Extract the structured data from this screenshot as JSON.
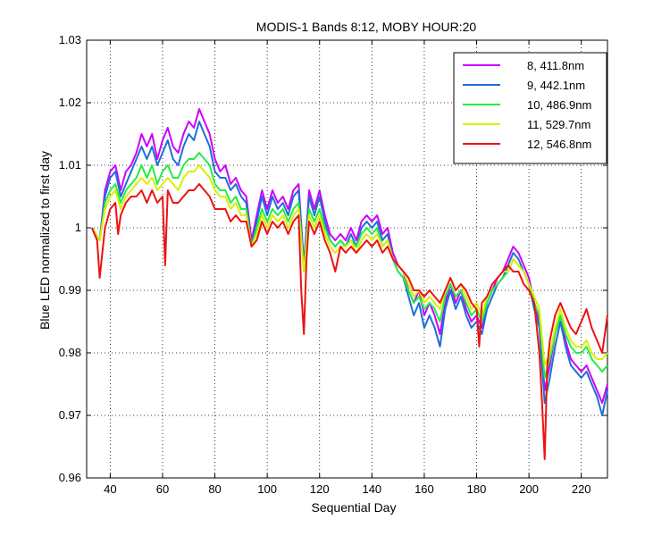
{
  "chart_data": {
    "type": "line",
    "title": "MODIS-1 Bands 8:12, MOBY HOUR:20",
    "xlabel": "Sequential Day",
    "ylabel": "Blue LED normalized to first day",
    "xlim": [
      31,
      230
    ],
    "ylim": [
      0.96,
      1.03
    ],
    "x_ticks": [
      40,
      60,
      80,
      100,
      120,
      140,
      160,
      180,
      200,
      220
    ],
    "x_tick_labels": [
      "40",
      "60",
      "80",
      "100",
      "120",
      "140",
      "160",
      "180",
      "200",
      "220"
    ],
    "y_ticks": [
      0.96,
      0.97,
      0.98,
      0.99,
      1.0,
      1.01,
      1.02,
      1.03
    ],
    "y_tick_labels": [
      "0.96",
      "0.97",
      "0.98",
      "0.99",
      "1",
      "1.01",
      "1.02",
      "1.03"
    ],
    "grid": "dotted",
    "legend_position": "top-right",
    "series": [
      {
        "name": "8, 411.8nm",
        "color": "#cc00ff",
        "x": [
          33,
          36,
          38,
          40,
          42,
          44,
          46,
          48,
          50,
          52,
          54,
          56,
          58,
          60,
          62,
          64,
          66,
          68,
          70,
          72,
          74,
          76,
          78,
          80,
          82,
          84,
          86,
          88,
          90,
          92,
          94,
          96,
          98,
          100,
          102,
          104,
          106,
          108,
          110,
          112,
          114,
          116,
          118,
          120,
          122,
          124,
          126,
          128,
          130,
          132,
          134,
          136,
          138,
          140,
          142,
          144,
          146,
          148,
          150,
          152,
          154,
          156,
          158,
          160,
          162,
          164,
          166,
          168,
          170,
          172,
          174,
          176,
          178,
          180,
          182,
          184,
          186,
          188,
          190,
          192,
          194,
          196,
          198,
          200,
          202,
          204,
          206,
          208,
          210,
          212,
          214,
          216,
          218,
          220,
          222,
          224,
          226,
          228,
          230
        ],
        "y": [
          1.0,
          0.998,
          1.006,
          1.009,
          1.01,
          1.006,
          1.009,
          1.01,
          1.012,
          1.015,
          1.013,
          1.015,
          1.011,
          1.014,
          1.016,
          1.013,
          1.012,
          1.015,
          1.017,
          1.016,
          1.019,
          1.017,
          1.015,
          1.011,
          1.009,
          1.01,
          1.007,
          1.008,
          1.006,
          1.005,
          0.998,
          1.002,
          1.006,
          1.003,
          1.006,
          1.004,
          1.005,
          1.003,
          1.006,
          1.007,
          0.994,
          1.006,
          1.003,
          1.006,
          1.002,
          0.999,
          0.998,
          0.999,
          0.998,
          1.0,
          0.998,
          1.001,
          1.002,
          1.001,
          1.002,
          0.999,
          1.0,
          0.996,
          0.994,
          0.993,
          0.99,
          0.988,
          0.99,
          0.986,
          0.988,
          0.986,
          0.983,
          0.988,
          0.991,
          0.988,
          0.99,
          0.987,
          0.985,
          0.986,
          0.984,
          0.988,
          0.99,
          0.992,
          0.993,
          0.995,
          0.997,
          0.996,
          0.994,
          0.992,
          0.988,
          0.985,
          0.974,
          0.978,
          0.983,
          0.986,
          0.982,
          0.979,
          0.978,
          0.977,
          0.978,
          0.976,
          0.974,
          0.972,
          0.975
        ]
      },
      {
        "name": "9, 442.1nm",
        "color": "#1e6fd9",
        "x": [
          33,
          36,
          38,
          40,
          42,
          44,
          46,
          48,
          50,
          52,
          54,
          56,
          58,
          60,
          62,
          64,
          66,
          68,
          70,
          72,
          74,
          76,
          78,
          80,
          82,
          84,
          86,
          88,
          90,
          92,
          94,
          96,
          98,
          100,
          102,
          104,
          106,
          108,
          110,
          112,
          114,
          116,
          118,
          120,
          122,
          124,
          126,
          128,
          130,
          132,
          134,
          136,
          138,
          140,
          142,
          144,
          146,
          148,
          150,
          152,
          154,
          156,
          158,
          160,
          162,
          164,
          166,
          168,
          170,
          172,
          174,
          176,
          178,
          180,
          182,
          184,
          186,
          188,
          190,
          192,
          194,
          196,
          198,
          200,
          202,
          204,
          206,
          208,
          210,
          212,
          214,
          216,
          218,
          220,
          222,
          224,
          226,
          228,
          230
        ],
        "y": [
          1.0,
          0.998,
          1.005,
          1.008,
          1.009,
          1.005,
          1.007,
          1.009,
          1.011,
          1.013,
          1.011,
          1.013,
          1.01,
          1.012,
          1.014,
          1.011,
          1.01,
          1.013,
          1.015,
          1.014,
          1.017,
          1.015,
          1.013,
          1.009,
          1.008,
          1.008,
          1.006,
          1.007,
          1.005,
          1.004,
          0.997,
          1.001,
          1.005,
          1.002,
          1.005,
          1.003,
          1.004,
          1.002,
          1.005,
          1.006,
          0.994,
          1.005,
          1.002,
          1.005,
          1.001,
          0.998,
          0.997,
          0.998,
          0.997,
          0.999,
          0.997,
          1.0,
          1.001,
          1.0,
          1.001,
          0.998,
          0.999,
          0.995,
          0.993,
          0.992,
          0.989,
          0.986,
          0.988,
          0.984,
          0.986,
          0.984,
          0.981,
          0.987,
          0.99,
          0.987,
          0.989,
          0.986,
          0.984,
          0.985,
          0.983,
          0.987,
          0.989,
          0.991,
          0.992,
          0.994,
          0.996,
          0.995,
          0.993,
          0.991,
          0.987,
          0.984,
          0.972,
          0.976,
          0.981,
          0.985,
          0.981,
          0.978,
          0.977,
          0.976,
          0.977,
          0.975,
          0.973,
          0.97,
          0.974
        ]
      },
      {
        "name": "10, 486.9nm",
        "color": "#22ee44",
        "x": [
          33,
          36,
          38,
          40,
          42,
          44,
          46,
          48,
          50,
          52,
          54,
          56,
          58,
          60,
          62,
          64,
          66,
          68,
          70,
          72,
          74,
          76,
          78,
          80,
          82,
          84,
          86,
          88,
          90,
          92,
          94,
          96,
          98,
          100,
          102,
          104,
          106,
          108,
          110,
          112,
          114,
          116,
          118,
          120,
          122,
          124,
          126,
          128,
          130,
          132,
          134,
          136,
          138,
          140,
          142,
          144,
          146,
          148,
          150,
          152,
          154,
          156,
          158,
          160,
          162,
          164,
          166,
          168,
          170,
          172,
          174,
          176,
          178,
          180,
          182,
          184,
          186,
          188,
          190,
          192,
          194,
          196,
          198,
          200,
          202,
          204,
          206,
          208,
          210,
          212,
          214,
          216,
          218,
          220,
          222,
          224,
          226,
          228,
          230
        ],
        "y": [
          1.0,
          0.998,
          1.004,
          1.006,
          1.007,
          1.004,
          1.006,
          1.007,
          1.008,
          1.01,
          1.008,
          1.01,
          1.007,
          1.009,
          1.01,
          1.008,
          1.008,
          1.01,
          1.011,
          1.011,
          1.012,
          1.011,
          1.01,
          1.007,
          1.006,
          1.006,
          1.004,
          1.005,
          1.003,
          1.003,
          0.997,
          1.0,
          1.003,
          1.001,
          1.003,
          1.002,
          1.003,
          1.001,
          1.003,
          1.004,
          0.993,
          1.003,
          1.001,
          1.003,
          1.0,
          0.998,
          0.997,
          0.998,
          0.997,
          0.998,
          0.997,
          0.999,
          1.0,
          0.999,
          1.0,
          0.997,
          0.998,
          0.995,
          0.993,
          0.992,
          0.99,
          0.988,
          0.989,
          0.987,
          0.988,
          0.987,
          0.985,
          0.989,
          0.991,
          0.989,
          0.99,
          0.988,
          0.986,
          0.987,
          0.985,
          0.988,
          0.99,
          0.991,
          0.992,
          0.993,
          0.995,
          0.994,
          0.993,
          0.991,
          0.988,
          0.986,
          0.976,
          0.979,
          0.983,
          0.986,
          0.983,
          0.981,
          0.98,
          0.98,
          0.981,
          0.979,
          0.978,
          0.977,
          0.978
        ]
      },
      {
        "name": "11, 529.7nm",
        "color": "#d8f000",
        "x": [
          33,
          36,
          38,
          40,
          42,
          44,
          46,
          48,
          50,
          52,
          54,
          56,
          58,
          60,
          62,
          64,
          66,
          68,
          70,
          72,
          74,
          76,
          78,
          80,
          82,
          84,
          86,
          88,
          90,
          92,
          94,
          96,
          98,
          100,
          102,
          104,
          106,
          108,
          110,
          112,
          114,
          116,
          118,
          120,
          122,
          124,
          126,
          128,
          130,
          132,
          134,
          136,
          138,
          140,
          142,
          144,
          146,
          148,
          150,
          152,
          154,
          156,
          158,
          160,
          162,
          164,
          166,
          168,
          170,
          172,
          174,
          176,
          178,
          180,
          182,
          184,
          186,
          188,
          190,
          192,
          194,
          196,
          198,
          200,
          202,
          204,
          206,
          208,
          210,
          212,
          214,
          216,
          218,
          220,
          222,
          224,
          226,
          228,
          230
        ],
        "y": [
          1.0,
          0.998,
          1.003,
          1.005,
          1.006,
          1.003,
          1.005,
          1.006,
          1.007,
          1.008,
          1.007,
          1.008,
          1.006,
          1.007,
          1.008,
          1.007,
          1.006,
          1.008,
          1.009,
          1.009,
          1.01,
          1.009,
          1.008,
          1.006,
          1.005,
          1.005,
          1.003,
          1.004,
          1.002,
          1.002,
          0.997,
          0.999,
          1.002,
          1.0,
          1.002,
          1.001,
          1.002,
          1.0,
          1.002,
          1.003,
          0.993,
          1.002,
          1.0,
          1.002,
          0.999,
          0.997,
          0.996,
          0.997,
          0.997,
          0.998,
          0.996,
          0.998,
          0.999,
          0.998,
          0.999,
          0.997,
          0.998,
          0.995,
          0.994,
          0.993,
          0.991,
          0.989,
          0.99,
          0.988,
          0.989,
          0.988,
          0.987,
          0.99,
          0.992,
          0.99,
          0.991,
          0.989,
          0.987,
          0.988,
          0.986,
          0.989,
          0.991,
          0.992,
          0.993,
          0.993,
          0.995,
          0.994,
          0.993,
          0.991,
          0.989,
          0.987,
          0.978,
          0.98,
          0.984,
          0.987,
          0.984,
          0.982,
          0.981,
          0.981,
          0.982,
          0.98,
          0.979,
          0.979,
          0.98
        ]
      },
      {
        "name": "12, 546.8nm",
        "color": "#ee1111",
        "x": [
          33,
          35,
          36,
          38,
          40,
          42,
          43,
          44,
          46,
          48,
          50,
          52,
          54,
          56,
          58,
          60,
          61,
          62,
          64,
          66,
          68,
          70,
          72,
          74,
          76,
          78,
          80,
          82,
          84,
          86,
          88,
          90,
          92,
          94,
          96,
          98,
          100,
          102,
          104,
          106,
          108,
          110,
          112,
          113,
          114,
          115,
          116,
          118,
          120,
          122,
          124,
          126,
          128,
          130,
          132,
          134,
          136,
          138,
          140,
          142,
          144,
          146,
          148,
          150,
          152,
          154,
          156,
          158,
          160,
          162,
          164,
          166,
          168,
          170,
          172,
          174,
          176,
          178,
          180,
          181,
          182,
          184,
          186,
          188,
          190,
          192,
          194,
          196,
          198,
          200,
          202,
          204,
          205,
          206,
          207,
          208,
          210,
          212,
          214,
          216,
          218,
          220,
          222,
          224,
          226,
          228,
          230
        ],
        "y": [
          1.0,
          0.998,
          0.992,
          1.0,
          1.003,
          1.004,
          0.999,
          1.002,
          1.004,
          1.005,
          1.005,
          1.006,
          1.004,
          1.006,
          1.004,
          1.005,
          0.994,
          1.006,
          1.004,
          1.004,
          1.005,
          1.006,
          1.006,
          1.007,
          1.006,
          1.005,
          1.003,
          1.003,
          1.003,
          1.001,
          1.002,
          1.001,
          1.001,
          0.997,
          0.998,
          1.001,
          0.999,
          1.001,
          1.0,
          1.001,
          0.999,
          1.001,
          1.002,
          0.99,
          0.983,
          0.995,
          1.001,
          0.999,
          1.001,
          0.998,
          0.996,
          0.993,
          0.997,
          0.996,
          0.997,
          0.996,
          0.997,
          0.998,
          0.997,
          0.998,
          0.996,
          0.997,
          0.995,
          0.994,
          0.993,
          0.992,
          0.99,
          0.99,
          0.989,
          0.99,
          0.989,
          0.988,
          0.99,
          0.992,
          0.99,
          0.991,
          0.99,
          0.988,
          0.987,
          0.981,
          0.988,
          0.989,
          0.991,
          0.992,
          0.993,
          0.994,
          0.993,
          0.993,
          0.991,
          0.99,
          0.988,
          0.98,
          0.972,
          0.963,
          0.978,
          0.982,
          0.986,
          0.988,
          0.986,
          0.984,
          0.983,
          0.985,
          0.987,
          0.984,
          0.982,
          0.98,
          0.986
        ]
      }
    ]
  }
}
